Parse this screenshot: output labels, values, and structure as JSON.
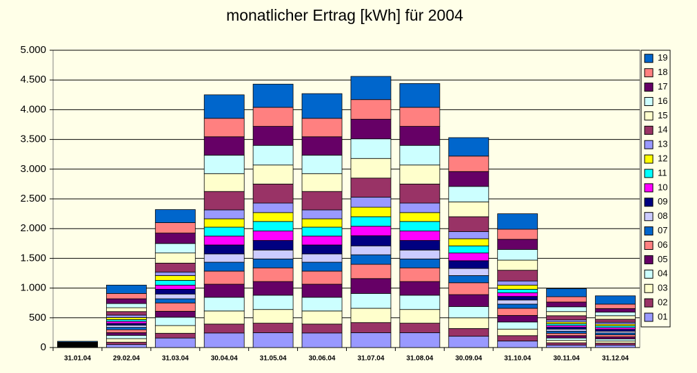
{
  "chart_data": {
    "type": "stacked-bar",
    "title": "monatlicher Ertrag [kWh] für 2004",
    "categories": [
      "31.01.04",
      "29.02.04",
      "31.03.04",
      "30.04.04",
      "31.05.04",
      "30.06.04",
      "31.07.04",
      "31.08.04",
      "30.09.04",
      "31.10.04",
      "30.11.04",
      "31.12.04"
    ],
    "ylim": [
      0,
      5000
    ],
    "yticks": [
      0,
      {
        "value": 500,
        "label": "500"
      },
      {
        "value": 1000,
        "label": "1.000"
      },
      {
        "value": 1500,
        "label": "1.500"
      },
      {
        "value": 2000,
        "label": "2.000"
      },
      {
        "value": 2500,
        "label": "2.500"
      },
      {
        "value": 3000,
        "label": "3.000"
      },
      {
        "value": 3500,
        "label": "3.500"
      },
      {
        "value": 4000,
        "label": "4.000"
      },
      {
        "value": 4500,
        "label": "4.500"
      },
      {
        "value": 5000,
        "label": "5.000"
      }
    ],
    "grid": true,
    "series": [
      {
        "name": "01",
        "color": "#9999FF",
        "values": [
          5,
          50,
          160,
          245,
          250,
          245,
          250,
          250,
          190,
          110,
          40,
          40
        ]
      },
      {
        "name": "02",
        "color": "#993366",
        "values": [
          5,
          40,
          80,
          150,
          160,
          150,
          170,
          160,
          130,
          90,
          40,
          35
        ]
      },
      {
        "name": "03",
        "color": "#FFFFCC",
        "values": [
          5,
          60,
          130,
          220,
          230,
          220,
          240,
          230,
          180,
          110,
          40,
          35
        ]
      },
      {
        "name": "04",
        "color": "#CCFFFF",
        "values": [
          5,
          55,
          140,
          230,
          240,
          230,
          250,
          240,
          190,
          120,
          40,
          35
        ]
      },
      {
        "name": "05",
        "color": "#660066",
        "values": [
          5,
          45,
          100,
          220,
          230,
          220,
          250,
          230,
          200,
          110,
          40,
          35
        ]
      },
      {
        "name": "06",
        "color": "#FF8080",
        "values": [
          5,
          50,
          140,
          220,
          230,
          220,
          240,
          230,
          200,
          120,
          40,
          35
        ]
      },
      {
        "name": "07",
        "color": "#0066CC",
        "values": [
          5,
          40,
          70,
          150,
          150,
          150,
          160,
          150,
          120,
          70,
          35,
          30
        ]
      },
      {
        "name": "08",
        "color": "#CCCCFF",
        "values": [
          5,
          35,
          80,
          140,
          150,
          140,
          150,
          150,
          120,
          70,
          35,
          30
        ]
      },
      {
        "name": "09",
        "color": "#000080",
        "values": [
          5,
          30,
          80,
          150,
          160,
          150,
          170,
          160,
          130,
          60,
          30,
          30
        ]
      },
      {
        "name": "10",
        "color": "#FF00FF",
        "values": [
          5,
          35,
          70,
          150,
          160,
          150,
          160,
          160,
          130,
          60,
          30,
          30
        ]
      },
      {
        "name": "11",
        "color": "#00FFFF",
        "values": [
          5,
          30,
          80,
          150,
          160,
          150,
          160,
          160,
          120,
          60,
          30,
          30
        ]
      },
      {
        "name": "12",
        "color": "#FFFF00",
        "values": [
          5,
          35,
          80,
          140,
          150,
          140,
          160,
          150,
          120,
          70,
          30,
          30
        ]
      },
      {
        "name": "13",
        "color": "#9999FF",
        "values": [
          5,
          40,
          60,
          150,
          160,
          150,
          170,
          160,
          120,
          70,
          35,
          30
        ]
      },
      {
        "name": "14",
        "color": "#993366",
        "values": [
          5,
          60,
          150,
          310,
          320,
          310,
          320,
          320,
          250,
          180,
          70,
          50
        ]
      },
      {
        "name": "15",
        "color": "#FFFFCC",
        "values": [
          5,
          65,
          170,
          300,
          320,
          300,
          330,
          320,
          250,
          170,
          70,
          60
        ]
      },
      {
        "name": "16",
        "color": "#CCFFFF",
        "values": [
          5,
          70,
          160,
          310,
          330,
          310,
          330,
          330,
          260,
          180,
          80,
          60
        ]
      },
      {
        "name": "17",
        "color": "#660066",
        "values": [
          5,
          80,
          175,
          310,
          320,
          310,
          330,
          320,
          250,
          170,
          80,
          60
        ]
      },
      {
        "name": "18",
        "color": "#FF8080",
        "values": [
          5,
          90,
          175,
          310,
          320,
          310,
          330,
          320,
          260,
          170,
          90,
          75
        ]
      },
      {
        "name": "19",
        "color": "#0066CC",
        "values": [
          15,
          140,
          220,
          395,
          390,
          415,
          390,
          400,
          310,
          260,
          135,
          140
        ]
      }
    ]
  }
}
